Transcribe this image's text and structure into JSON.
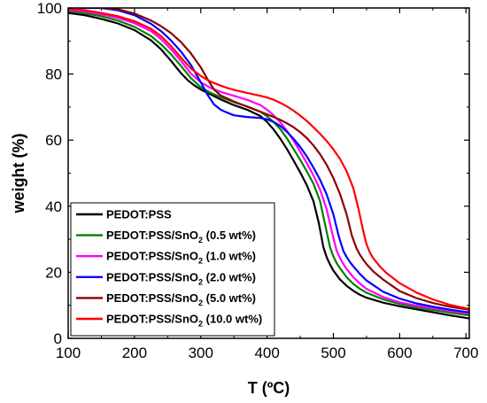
{
  "chart_data": {
    "type": "line",
    "title": "",
    "xlabel": "T (ºC)",
    "ylabel": "weight (%)",
    "xlim": [
      100,
      705
    ],
    "ylim": [
      0,
      100
    ],
    "xticks": [
      100,
      200,
      300,
      400,
      500,
      600,
      700
    ],
    "yticks": [
      0,
      20,
      40,
      60,
      80,
      100
    ],
    "legend_position": "bottom-left",
    "series": [
      {
        "name": "PEDOT:PSS",
        "legend_main": "PEDOT:PSS",
        "legend_sub": "",
        "legend_tail": "",
        "color": "#000000",
        "x": [
          100,
          125,
          150,
          175,
          200,
          225,
          240,
          255,
          270,
          280,
          290,
          300,
          315,
          330,
          350,
          370,
          390,
          400,
          410,
          420,
          430,
          440,
          450,
          460,
          470,
          478,
          485,
          490,
          495,
          500,
          510,
          520,
          530,
          540,
          550,
          575,
          600,
          625,
          650,
          675,
          700,
          705
        ],
        "y": [
          98.5,
          97.8,
          96.7,
          95.3,
          93.3,
          90.2,
          87.5,
          84,
          80.3,
          78.2,
          76.6,
          75.3,
          73.8,
          72.3,
          70.6,
          69.2,
          67.3,
          65.5,
          63.2,
          60.4,
          57.3,
          53.8,
          50.2,
          46.3,
          41.5,
          35,
          27.5,
          24.5,
          22.3,
          20.5,
          17.8,
          15.9,
          14.4,
          13.2,
          12.3,
          10.8,
          9.7,
          8.8,
          7.9,
          7.0,
          6.2,
          6.0
        ]
      },
      {
        "name": "PEDOT:PSS/SnO2 (0.5 wt%)",
        "legend_main": "PEDOT:PSS/SnO",
        "legend_sub": "2",
        "legend_tail": " (0.5 wt%)",
        "color": "#008000",
        "x": [
          100,
          125,
          150,
          175,
          200,
          225,
          240,
          255,
          270,
          285,
          300,
          315,
          330,
          350,
          370,
          390,
          400,
          410,
          420,
          430,
          440,
          450,
          460,
          470,
          480,
          488,
          495,
          500,
          505,
          510,
          520,
          530,
          540,
          550,
          575,
          600,
          625,
          650,
          675,
          700,
          705
        ],
        "y": [
          99,
          98.4,
          97.5,
          96.2,
          94.3,
          91.5,
          89,
          86,
          82.5,
          78.8,
          76,
          74.3,
          73,
          71.5,
          70.2,
          68.6,
          67.2,
          65.5,
          63.3,
          60.5,
          57.3,
          54,
          50.5,
          46.8,
          41.5,
          34,
          27.5,
          24.8,
          22.8,
          21.2,
          18.5,
          16.5,
          15,
          13.8,
          11.8,
          10.4,
          9.4,
          8.6,
          7.8,
          7.1,
          7.0
        ]
      },
      {
        "name": "PEDOT:PSS/SnO2 (1.0 wt%)",
        "legend_main": "PEDOT:PSS/SnO",
        "legend_sub": "2",
        "legend_tail": " (1.0 wt%)",
        "color": "#ff00ff",
        "x": [
          100,
          125,
          150,
          175,
          200,
          225,
          240,
          255,
          270,
          285,
          300,
          315,
          330,
          350,
          370,
          390,
          400,
          410,
          420,
          430,
          440,
          450,
          460,
          470,
          480,
          490,
          498,
          505,
          510,
          515,
          520,
          530,
          540,
          550,
          575,
          600,
          625,
          650,
          675,
          700,
          705
        ],
        "y": [
          99.4,
          98.9,
          98.1,
          97,
          95.4,
          93,
          90.6,
          87.5,
          84,
          80.2,
          77.5,
          75.8,
          74.6,
          73.4,
          72.2,
          70.6,
          69.2,
          67.5,
          65.4,
          62.8,
          59.8,
          56.5,
          53,
          49.3,
          45,
          39,
          32,
          26.5,
          24.3,
          22.5,
          21,
          18.5,
          16.6,
          15,
          12.5,
          10.9,
          9.9,
          9.1,
          8.3,
          7.6,
          7.5
        ]
      },
      {
        "name": "PEDOT:PSS/SnO2 (2.0 wt%)",
        "legend_main": "PEDOT:PSS/SnO",
        "legend_sub": "2",
        "legend_tail": " (2.0 wt%)",
        "color": "#0000ff",
        "x": [
          100,
          125,
          150,
          175,
          200,
          225,
          240,
          255,
          270,
          285,
          300,
          310,
          320,
          330,
          340,
          350,
          370,
          390,
          400,
          410,
          420,
          430,
          440,
          450,
          460,
          470,
          480,
          490,
          500,
          508,
          515,
          520,
          525,
          530,
          540,
          550,
          575,
          600,
          625,
          650,
          675,
          700,
          705
        ],
        "y": [
          100,
          100,
          100,
          99.3,
          97.8,
          95.2,
          93,
          90.2,
          86.8,
          82.8,
          77.5,
          73.8,
          70.8,
          69.2,
          68.3,
          67.5,
          67,
          66.7,
          66.3,
          65.5,
          64.3,
          62.5,
          60.4,
          57.9,
          55,
          51.7,
          48,
          43.5,
          37.5,
          31,
          26.5,
          24.6,
          23.1,
          21.8,
          19.5,
          17.5,
          14.1,
          12,
          10.6,
          9.6,
          8.7,
          8.0,
          7.9
        ]
      },
      {
        "name": "PEDOT:PSS/SnO2 (5.0 wt%)",
        "legend_main": "PEDOT:PSS/SnO",
        "legend_sub": "2",
        "legend_tail": " (5.0 wt%)",
        "color": "#8b0000",
        "x": [
          100,
          125,
          150,
          175,
          200,
          225,
          240,
          255,
          270,
          285,
          300,
          310,
          320,
          330,
          340,
          350,
          370,
          390,
          400,
          410,
          420,
          430,
          440,
          450,
          460,
          470,
          480,
          490,
          500,
          510,
          520,
          528,
          535,
          540,
          545,
          550,
          560,
          575,
          600,
          625,
          650,
          675,
          700,
          705
        ],
        "y": [
          101,
          100.3,
          100.1,
          99.6,
          98.3,
          96.2,
          94.5,
          92.4,
          89.7,
          86.3,
          82,
          78.5,
          75.3,
          73.5,
          72.6,
          71.7,
          70.1,
          68.6,
          67.8,
          67,
          66.1,
          65.1,
          63.9,
          62.4,
          60.6,
          58.4,
          55.7,
          52.5,
          48.5,
          43.7,
          37.5,
          31,
          27.2,
          25.3,
          23.8,
          22.5,
          20.3,
          17.8,
          14.3,
          12.2,
          10.7,
          9.6,
          8.8,
          8.6
        ]
      },
      {
        "name": "PEDOT:PSS/SnO2 (10.0 wt%)",
        "legend_main": "PEDOT:PSS/SnO",
        "legend_sub": "2",
        "legend_tail": " (10.0 wt%)",
        "color": "#ff0000",
        "x": [
          100,
          125,
          150,
          175,
          200,
          225,
          240,
          255,
          270,
          285,
          300,
          310,
          320,
          330,
          340,
          350,
          370,
          390,
          400,
          410,
          420,
          430,
          440,
          450,
          460,
          470,
          480,
          490,
          500,
          510,
          520,
          530,
          538,
          545,
          550,
          555,
          560,
          570,
          580,
          600,
          625,
          650,
          675,
          700,
          705
        ],
        "y": [
          99.8,
          99.3,
          98.5,
          97.5,
          96,
          93.7,
          91.5,
          88.5,
          85,
          81.7,
          79.4,
          78.2,
          77.3,
          76.5,
          75.8,
          75.2,
          74.3,
          73.4,
          72.9,
          72.2,
          71.3,
          70.2,
          68.9,
          67.4,
          65.8,
          63.9,
          61.9,
          59.7,
          57.2,
          54.3,
          50.6,
          45.5,
          39,
          32.5,
          28.5,
          26,
          24.3,
          21.8,
          19.8,
          16.7,
          13.9,
          11.8,
          10.2,
          9.1,
          8.9
        ]
      }
    ]
  }
}
